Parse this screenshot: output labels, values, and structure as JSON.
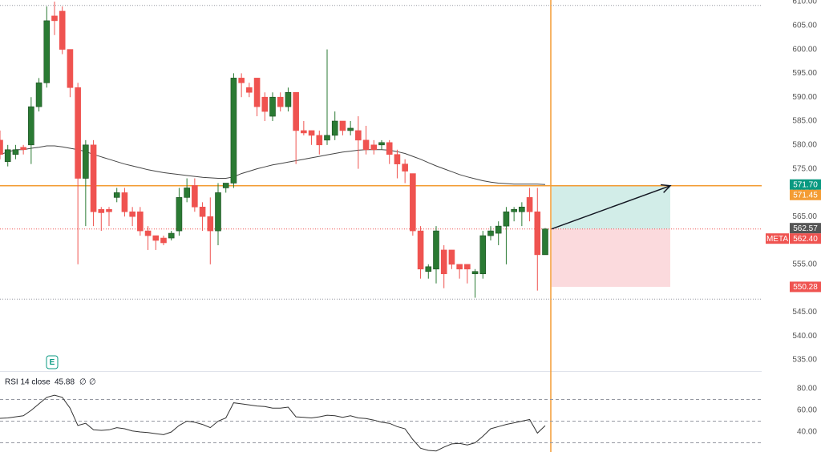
{
  "chart_data": {
    "type": "candlestick",
    "ticker": "META",
    "up_color": "#2a7a33",
    "down_color": "#ef5350",
    "ylim": [
      532.65,
      610.34
    ],
    "yticks": [
      {
        "value": 610,
        "label": "610.00"
      },
      {
        "value": 605,
        "label": "605.00"
      },
      {
        "value": 600,
        "label": "600.00"
      },
      {
        "value": 595,
        "label": "595.00"
      },
      {
        "value": 590,
        "label": "590.00"
      },
      {
        "value": 585,
        "label": "585.00"
      },
      {
        "value": 580,
        "label": "580.00"
      },
      {
        "value": 575,
        "label": "575.00"
      },
      {
        "value": 570,
        "label": "570.00"
      },
      {
        "value": 565,
        "label": "565.00"
      },
      {
        "value": 560,
        "label": "560.00"
      },
      {
        "value": 555,
        "label": "555.00"
      },
      {
        "value": 550,
        "label": "550.00"
      },
      {
        "value": 545,
        "label": "545.00"
      },
      {
        "value": 540,
        "label": "540.00"
      },
      {
        "value": 535,
        "label": "535.00"
      }
    ],
    "open": [
      581,
      576.5,
      578,
      579.5,
      580,
      588,
      593,
      607,
      608,
      600,
      592,
      573,
      580,
      566.5,
      566.5,
      569,
      570,
      566,
      566,
      562,
      561,
      560.5,
      560.5,
      562,
      569,
      571.5,
      567,
      565,
      562,
      571,
      572,
      594,
      592,
      594,
      590,
      586,
      590,
      588,
      591,
      583,
      583,
      582,
      581,
      582,
      585,
      583,
      583,
      581,
      580,
      580,
      580.5,
      578,
      576,
      574,
      562,
      553.5,
      554,
      558,
      558,
      555,
      555,
      553,
      553,
      561,
      561.5,
      563,
      566,
      566,
      569,
      566,
      557
    ],
    "high": [
      583,
      580,
      580,
      580,
      590,
      594,
      609,
      610,
      609,
      600,
      593,
      581,
      581,
      567,
      567,
      571,
      571,
      567,
      567,
      563,
      561,
      561,
      562,
      571,
      573,
      573,
      568,
      569,
      572,
      572,
      595,
      595,
      593,
      594,
      591,
      591,
      591,
      592,
      591,
      585,
      583,
      583,
      600,
      587,
      585,
      585,
      586,
      584,
      581,
      581,
      581,
      579,
      577,
      574,
      563,
      555,
      563,
      559,
      558,
      555,
      555,
      554,
      562,
      563,
      564,
      567,
      567,
      568,
      571,
      571,
      562.6
    ],
    "low": [
      577,
      575.5,
      577,
      578,
      576,
      587,
      592,
      603,
      599,
      590,
      555,
      563,
      563,
      562,
      563,
      568,
      565,
      563,
      561,
      558,
      558,
      559,
      560,
      561,
      568,
      566,
      562,
      555,
      559,
      570,
      571,
      590,
      590,
      586,
      585,
      585,
      587,
      587,
      576,
      582,
      580,
      578,
      580,
      581,
      582,
      582,
      575,
      578,
      578,
      579,
      576,
      573,
      572,
      561,
      552,
      552,
      551,
      550,
      554,
      552,
      551,
      548,
      552,
      560,
      559,
      555,
      564,
      563,
      564,
      549.5,
      557
    ],
    "close": [
      578,
      579,
      579,
      579,
      588,
      593,
      606,
      606,
      600,
      592,
      573,
      580,
      566,
      565.8,
      566,
      570,
      566,
      565,
      562,
      561,
      560,
      559.5,
      561.5,
      569,
      571,
      567,
      565,
      562,
      570,
      572,
      594,
      593,
      591,
      588,
      587,
      590,
      588,
      591,
      583,
      582.5,
      582,
      580,
      582,
      585,
      583,
      583.5,
      581,
      579,
      579,
      580.5,
      578,
      576,
      574.5,
      562,
      554,
      554.5,
      562,
      553,
      555,
      554,
      554,
      553.5,
      561,
      562,
      563,
      566,
      566.5,
      567,
      566,
      557,
      562.4
    ],
    "sma": [
      578,
      578.5,
      579,
      579,
      579.3,
      579.5,
      579.8,
      579.8,
      579.6,
      579.3,
      579,
      578.6,
      578,
      577.5,
      577,
      576.5,
      576,
      575.6,
      575.2,
      574.8,
      574.5,
      574.2,
      574,
      573.8,
      573.6,
      573.4,
      573.2,
      573.1,
      573,
      573,
      573.3,
      574,
      574.5,
      575,
      575.4,
      575.8,
      576.1,
      576.4,
      576.7,
      577,
      577.3,
      577.6,
      577.9,
      578.2,
      578.5,
      578.7,
      578.9,
      579,
      579,
      579,
      578.9,
      578.6,
      578.2,
      577.6,
      577,
      576.3,
      575.6,
      575,
      574.4,
      573.8,
      573.3,
      572.9,
      572.5,
      572.2,
      572,
      571.9,
      571.8,
      571.8,
      571.8,
      571.8,
      571.7
    ],
    "sma_color": "#444444",
    "high_line": 609.2,
    "low_line": 547.7,
    "horizontal_line": 571.45,
    "line_color": "#f39c34",
    "position": {
      "entry": 562.4,
      "target": 571.45,
      "stop": 550.28,
      "profit_color": "#d2ede8",
      "loss_color": "#fbdadd"
    },
    "price_labels": [
      {
        "value": 571.7,
        "label": "571.70",
        "color": "#089981"
      },
      {
        "value": 571.45,
        "label": "571.45",
        "color": "#f39c34"
      },
      {
        "value": 562.57,
        "label": "562.57",
        "color": "#555555"
      },
      {
        "value": 562.4,
        "label": "562.40",
        "color": "#ef5350"
      },
      {
        "value": 550.28,
        "label": "550.28",
        "color": "#ef5350"
      }
    ],
    "earnings_label": "E",
    "rsi": {
      "title": "RSI 14 close",
      "extra": [
        "∅",
        "∅"
      ],
      "color": "#333333",
      "ylim": [
        21.5,
        95.6
      ],
      "yticks": [
        {
          "value": 80,
          "label": "80.00"
        },
        {
          "value": 60,
          "label": "60.00"
        },
        {
          "value": 40,
          "label": "40.00"
        }
      ],
      "levels": [
        70,
        50,
        30
      ],
      "values": [
        52.6,
        53,
        54,
        55,
        60,
        66,
        72,
        74,
        72,
        62,
        46,
        48,
        42,
        41.5,
        42,
        44,
        43,
        41,
        40,
        39.5,
        38.5,
        37.5,
        40,
        46,
        50,
        49,
        47,
        44,
        50,
        53,
        67,
        66,
        65,
        64,
        63.5,
        62,
        62,
        63,
        54,
        53.5,
        53,
        54,
        55.5,
        55,
        53.5,
        55,
        53,
        52.5,
        51,
        49,
        48,
        45,
        43,
        33,
        25,
        23,
        22.5,
        26,
        29,
        29.5,
        28,
        30,
        36,
        43,
        45,
        47,
        48.5,
        50,
        51.5,
        39,
        45.88
      ]
    }
  }
}
